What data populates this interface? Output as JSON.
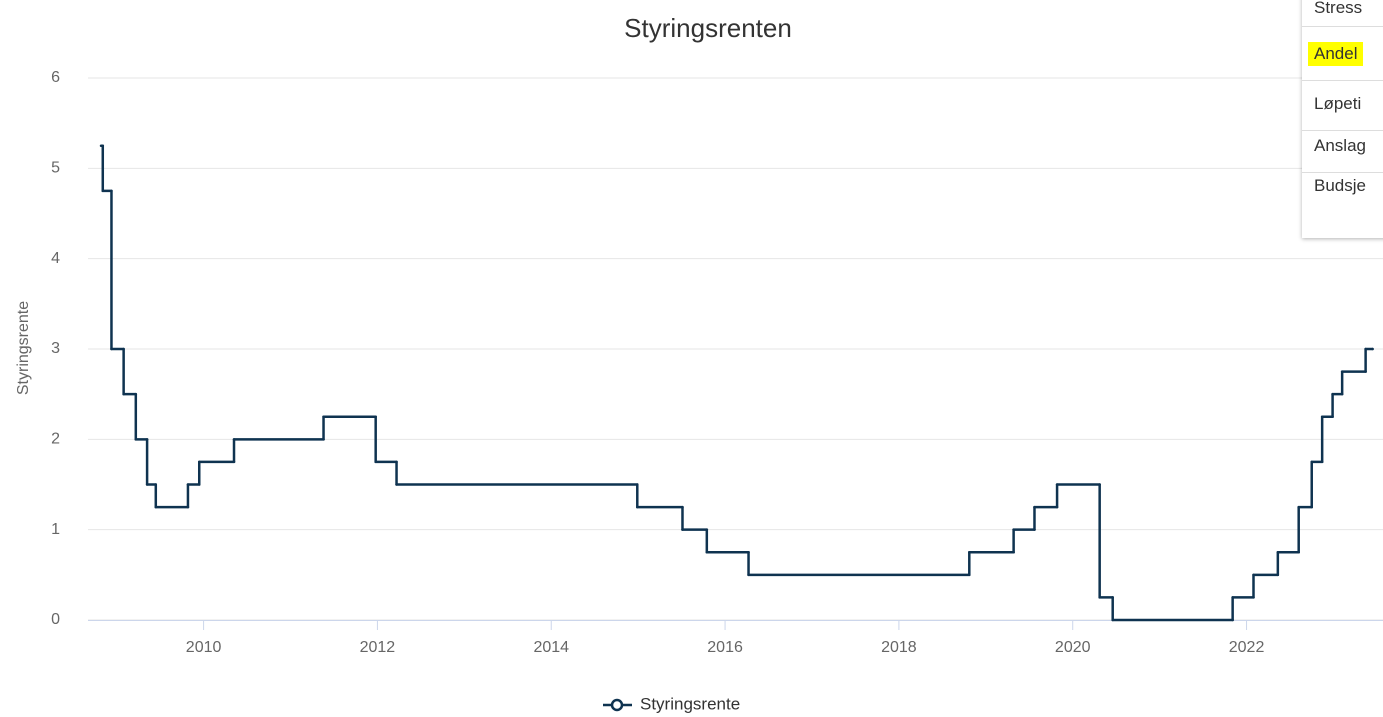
{
  "chart_data": {
    "type": "line",
    "step": true,
    "title": "Styringsrenten",
    "y_label": "Styringsrente",
    "xlim": [
      2008.67,
      2023.57
    ],
    "xticks": [
      2010,
      2012,
      2014,
      2016,
      2018,
      2020,
      2022
    ],
    "ylim": [
      0,
      6
    ],
    "yticks": [
      0,
      1,
      2,
      3,
      4,
      5,
      6
    ],
    "grid": true,
    "legend": "bottom",
    "series": [
      {
        "name": "Styringsrente",
        "color": "#0f3350",
        "x": [
          2008.82,
          2008.84,
          2008.94,
          2009.08,
          2009.22,
          2009.35,
          2009.45,
          2009.82,
          2009.95,
          2010.35,
          2011.38,
          2011.98,
          2012.22,
          2014.99,
          2015.51,
          2015.79,
          2016.27,
          2018.81,
          2019.32,
          2019.56,
          2019.82,
          2020.31,
          2020.46,
          2021.84,
          2022.08,
          2022.36,
          2022.6,
          2022.75,
          2022.87,
          2022.99,
          2023.1,
          2023.37,
          2023.45
        ],
        "values": [
          5.25,
          4.75,
          3.0,
          2.5,
          2.0,
          1.5,
          1.25,
          1.5,
          1.75,
          2.0,
          2.25,
          1.75,
          1.5,
          1.25,
          1.0,
          0.75,
          0.5,
          0.75,
          1.0,
          1.25,
          1.5,
          0.25,
          0,
          0.25,
          0.5,
          0.75,
          1.25,
          1.75,
          2.25,
          2.5,
          2.75,
          3.0,
          3.0
        ]
      }
    ]
  },
  "menu": [
    "Stress",
    "Andel",
    "Løpeti",
    "Anslag",
    "Budsje"
  ]
}
